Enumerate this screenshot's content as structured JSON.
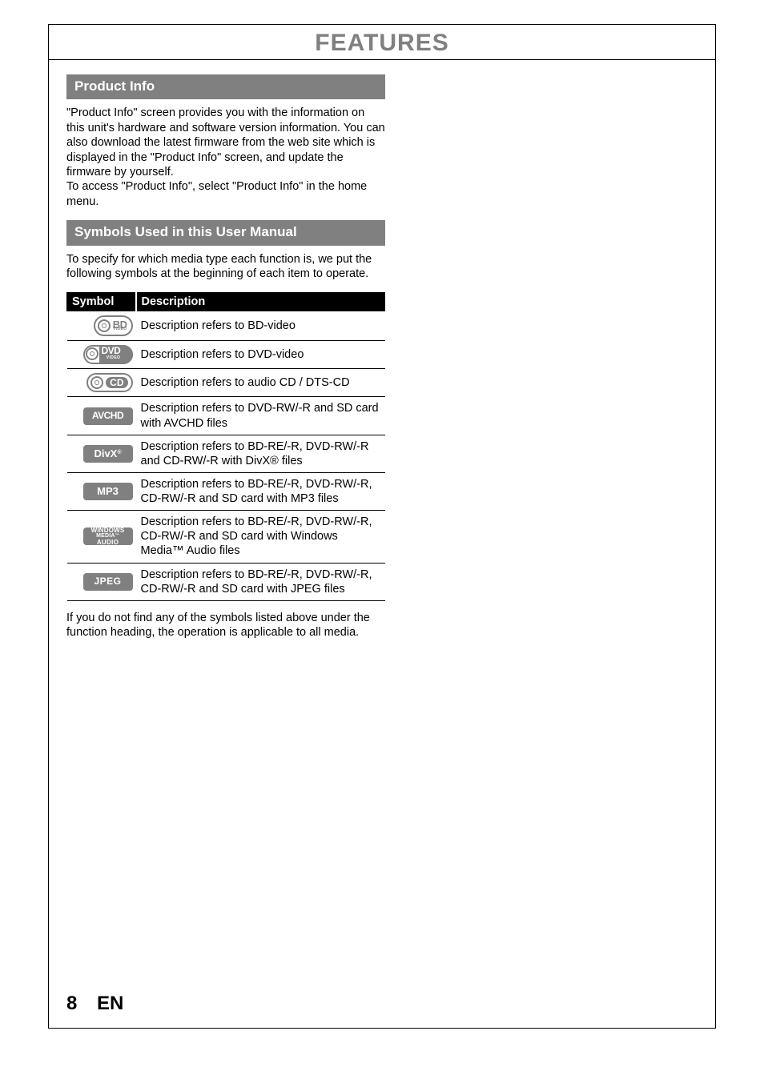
{
  "page": {
    "title": "FEATURES",
    "title_color": "#808080",
    "title_fontsize": 30,
    "page_number": "8",
    "lang": "EN",
    "footer_fontsize": 24
  },
  "sections": {
    "product_info": {
      "heading": "Product Info",
      "heading_bg": "#808080",
      "heading_color": "#ffffff",
      "heading_fontsize": 17,
      "body": "\"Product Info\" screen provides you with the information on this unit's hardware and software version information. You can also download the latest firmware from the web site which is displayed in the \"Product Info\" screen, and update the firmware by yourself.\nTo access \"Product Info\", select \"Product Info\" in the home menu.",
      "body_fontsize": 14.5
    },
    "symbols": {
      "heading": "Symbols Used in this User Manual",
      "heading_bg": "#808080",
      "heading_color": "#ffffff",
      "heading_fontsize": 17,
      "intro": "To specify for which media type each function is, we put the following symbols at the beginning of each item to operate.",
      "intro_fontsize": 14.5,
      "table": {
        "header_bg": "#000000",
        "header_color": "#ffffff",
        "columns": {
          "symbol": "Symbol",
          "description": "Description"
        },
        "col_fontsize": 14.5,
        "row_fontsize": 14.5,
        "rows": [
          {
            "icon": "bd",
            "desc": "Description refers to BD-video"
          },
          {
            "icon": "dvd",
            "desc": "Description refers to DVD-video"
          },
          {
            "icon": "cd",
            "desc": "Description refers to audio CD / DTS-CD"
          },
          {
            "icon": "avchd",
            "desc": "Description refers to DVD-RW/-R and SD card with AVCHD files"
          },
          {
            "icon": "divx",
            "desc": "Description refers to BD-RE/-R, DVD-RW/-R and CD-RW/-R with DivX® files"
          },
          {
            "icon": "mp3",
            "desc": "Description refers to BD-RE/-R, DVD-RW/-R, CD-RW/-R and SD card with MP3 files"
          },
          {
            "icon": "wma",
            "desc": "Description refers to BD-RE/-R, DVD-RW/-R, CD-RW/-R and SD card with Windows Media™ Audio files"
          },
          {
            "icon": "jpeg",
            "desc": "Description refers to BD-RE/-R, DVD-RW/-R, CD-RW/-R and SD card with JPEG files"
          }
        ]
      },
      "footnote": "If you do not find any of the symbols listed above under the function heading, the operation is applicable to all media.",
      "footnote_fontsize": 14.5
    }
  },
  "badges": {
    "bd": {
      "label_big": "BD",
      "label_small": "VIDEO",
      "color": "#808080"
    },
    "dvd": {
      "label_big": "DVD",
      "label_small": "VIDEO",
      "color": "#808080"
    },
    "cd": {
      "label": "CD",
      "color": "#808080"
    },
    "avchd": {
      "label": "AVCHD",
      "color": "#808080"
    },
    "divx": {
      "label": "DivX",
      "suffix": "®",
      "color": "#808080"
    },
    "mp3": {
      "label": "MP3",
      "color": "#808080"
    },
    "wma": {
      "line1": "WINDOWS",
      "line2": "MEDIA",
      "tm": "™",
      "line3": "AUDIO",
      "color": "#808080"
    },
    "jpeg": {
      "label": "JPEG",
      "color": "#808080"
    }
  }
}
